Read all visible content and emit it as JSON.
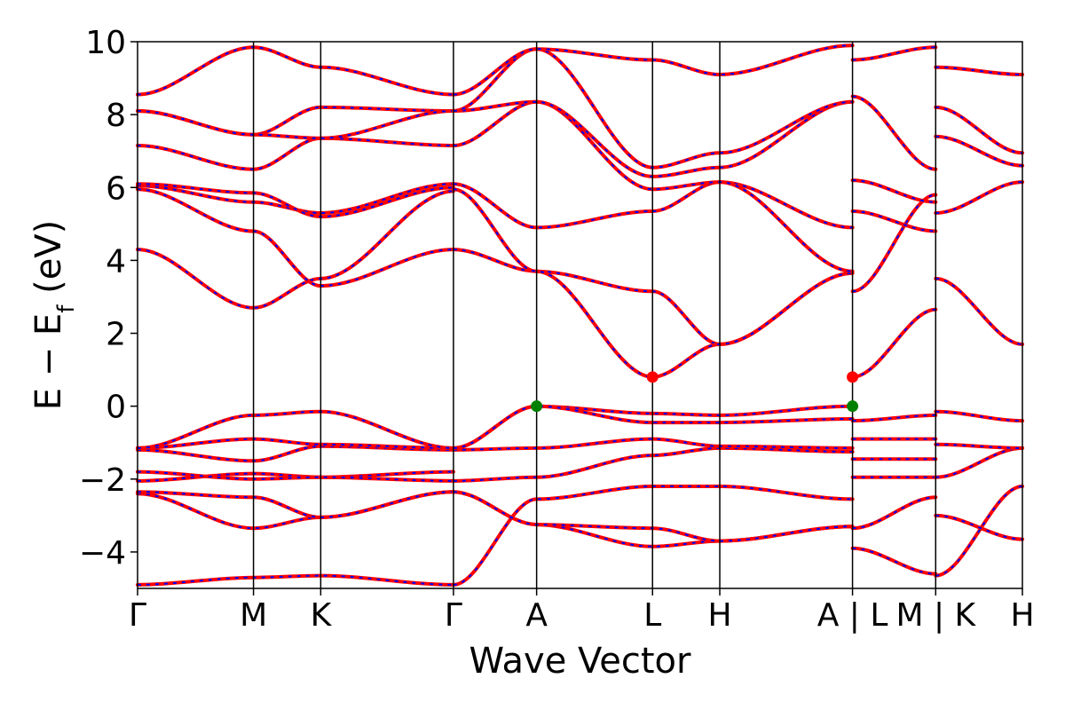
{
  "chart_data": {
    "type": "line",
    "xlabel": "Wave Vector",
    "ylabel": "E − E",
    "ylabel_sub": "f",
    "ylabel_unit": " (eV)",
    "ylim": [
      -5,
      10
    ],
    "xlim": [
      0,
      1
    ],
    "y_ticks": [
      -4,
      -2,
      0,
      2,
      4,
      6,
      8,
      10
    ],
    "y_tick_labels": [
      "−4",
      "−2",
      "0",
      "2",
      "4",
      "6",
      "8",
      "10"
    ],
    "k_path": [
      {
        "label": "Γ",
        "x": 0.0
      },
      {
        "label": "M",
        "x": 0.131
      },
      {
        "label": "K",
        "x": 0.207
      },
      {
        "label": "Γ",
        "x": 0.357
      },
      {
        "label": "A",
        "x": 0.451
      },
      {
        "label": "L",
        "x": 0.582
      },
      {
        "label": "H",
        "x": 0.658
      },
      {
        "label": "A | L",
        "x": 0.808
      },
      {
        "label": "M | K",
        "x": 0.902
      },
      {
        "label": "H",
        "x": 1.0
      }
    ],
    "grid": false,
    "legend": "none",
    "colors": {
      "band_solid": "#ff0000",
      "band_dashed": "#0000ff",
      "cbm_marker": "#ff0000",
      "vbm_marker": "#008000",
      "kline": "#000000"
    },
    "markers": [
      {
        "name": "cbm",
        "x": 0.582,
        "y": 0.8
      },
      {
        "name": "cbm",
        "x": 0.808,
        "y": 0.8
      },
      {
        "name": "vbm",
        "x": 0.451,
        "y": 0.0
      },
      {
        "name": "vbm",
        "x": 0.808,
        "y": 0.0
      }
    ],
    "series": [
      {
        "x": [
          0,
          0.131,
          0.207,
          0.357
        ],
        "y": [
          -4.9,
          -4.7,
          -4.65,
          -4.9
        ]
      },
      {
        "x": [
          0,
          0.131,
          0.207,
          0.357
        ],
        "y": [
          -2.4,
          -3.35,
          -3.05,
          -2.35
        ]
      },
      {
        "x": [
          0,
          0.131,
          0.207,
          0.357
        ],
        "y": [
          -2.35,
          -2.5,
          -3.05,
          -2.35
        ]
      },
      {
        "x": [
          0,
          0.131,
          0.207,
          0.357
        ],
        "y": [
          -2.05,
          -1.85,
          -1.95,
          -1.8
        ]
      },
      {
        "x": [
          0,
          0.131,
          0.207,
          0.357
        ],
        "y": [
          -1.8,
          -2.0,
          -1.95,
          -2.05
        ]
      },
      {
        "x": [
          0,
          0.131,
          0.207,
          0.357
        ],
        "y": [
          -1.2,
          -1.5,
          -1.1,
          -1.2
        ]
      },
      {
        "x": [
          0,
          0.131,
          0.207,
          0.357
        ],
        "y": [
          -1.15,
          -0.9,
          -1.05,
          -1.15
        ]
      },
      {
        "x": [
          0,
          0.131,
          0.207,
          0.357
        ],
        "y": [
          -1.15,
          -0.25,
          -0.15,
          -1.15
        ]
      },
      {
        "x": [
          0,
          0.131,
          0.207,
          0.357
        ],
        "y": [
          4.3,
          2.7,
          3.5,
          5.9
        ]
      },
      {
        "x": [
          0,
          0.131,
          0.207,
          0.357
        ],
        "y": [
          5.95,
          4.8,
          3.3,
          4.3
        ]
      },
      {
        "x": [
          0,
          0.131,
          0.207,
          0.357
        ],
        "y": [
          6.05,
          5.6,
          5.3,
          6.1
        ]
      },
      {
        "x": [
          0,
          0.131,
          0.207,
          0.357
        ],
        "y": [
          6.1,
          5.85,
          5.2,
          6.0
        ]
      },
      {
        "x": [
          0,
          0.131,
          0.207,
          0.357
        ],
        "y": [
          7.15,
          6.5,
          7.35,
          7.15
        ]
      },
      {
        "x": [
          0,
          0.131,
          0.207,
          0.357
        ],
        "y": [
          8.1,
          7.45,
          8.2,
          8.1
        ]
      },
      {
        "x": [
          0,
          0.131,
          0.207,
          0.357
        ],
        "y": [
          8.1,
          7.45,
          7.35,
          8.1
        ]
      },
      {
        "x": [
          0,
          0.131,
          0.207,
          0.357
        ],
        "y": [
          8.55,
          9.85,
          9.3,
          8.55
        ]
      },
      {
        "x": [
          0.357,
          0.451,
          0.582,
          0.658,
          0.808
        ],
        "y": [
          -4.9,
          -2.55,
          -2.2,
          -2.2,
          -2.55
        ]
      },
      {
        "x": [
          0.357,
          0.451,
          0.582,
          0.658,
          0.808
        ],
        "y": [
          -2.35,
          -3.25,
          -3.85,
          -3.7,
          -3.3
        ]
      },
      {
        "x": [
          0.357,
          0.451,
          0.582,
          0.658,
          0.808
        ],
        "y": [
          -2.35,
          -3.25,
          -3.35,
          -3.7,
          -3.3
        ]
      },
      {
        "x": [
          0.357,
          0.451,
          0.582,
          0.658,
          0.808
        ],
        "y": [
          -2.05,
          -1.95,
          -1.35,
          -1.15,
          -1.25
        ]
      },
      {
        "x": [
          0.357,
          0.451,
          0.582,
          0.658,
          0.808
        ],
        "y": [
          -1.2,
          -1.15,
          -0.9,
          -1.1,
          -1.15
        ]
      },
      {
        "x": [
          0.357,
          0.451,
          0.582,
          0.658,
          0.808
        ],
        "y": [
          -1.15,
          0.0,
          -0.2,
          -0.25,
          0.0
        ]
      },
      {
        "x": [
          0.357,
          0.451,
          0.582,
          0.658,
          0.808
        ],
        "y": [
          -1.15,
          0.0,
          -0.45,
          -0.45,
          -0.35
        ]
      },
      {
        "x": [
          0.357,
          0.451,
          0.582,
          0.658,
          0.808
        ],
        "y": [
          4.3,
          3.7,
          3.15,
          1.7,
          3.65
        ]
      },
      {
        "x": [
          0.357,
          0.451,
          0.582,
          0.658,
          0.808
        ],
        "y": [
          5.95,
          3.7,
          0.8,
          1.7,
          3.65
        ]
      },
      {
        "x": [
          0.357,
          0.451,
          0.582,
          0.658,
          0.808
        ],
        "y": [
          6.1,
          4.9,
          5.35,
          6.15,
          4.9
        ]
      },
      {
        "x": [
          0.357,
          0.451,
          0.582,
          0.658,
          0.808
        ],
        "y": [
          7.15,
          8.35,
          5.95,
          6.15,
          3.7
        ]
      },
      {
        "x": [
          0.357,
          0.451,
          0.582,
          0.658,
          0.808
        ],
        "y": [
          8.1,
          8.35,
          6.3,
          6.55,
          8.35
        ]
      },
      {
        "x": [
          0.357,
          0.451,
          0.582,
          0.658,
          0.808
        ],
        "y": [
          8.1,
          9.8,
          6.55,
          6.95,
          8.35
        ]
      },
      {
        "x": [
          0.357,
          0.451,
          0.582,
          0.658,
          0.808
        ],
        "y": [
          8.55,
          9.8,
          9.5,
          9.1,
          9.9
        ]
      },
      {
        "x": [
          0.808,
          0.902
        ],
        "y": [
          -3.9,
          -4.6
        ]
      },
      {
        "x": [
          0.808,
          0.902
        ],
        "y": [
          -3.35,
          -2.5
        ]
      },
      {
        "x": [
          0.808,
          0.902
        ],
        "y": [
          -1.95,
          -1.95
        ]
      },
      {
        "x": [
          0.808,
          0.902
        ],
        "y": [
          -1.45,
          -1.45
        ]
      },
      {
        "x": [
          0.808,
          0.902
        ],
        "y": [
          -0.9,
          -0.9
        ]
      },
      {
        "x": [
          0.808,
          0.902
        ],
        "y": [
          -0.4,
          -0.25
        ]
      },
      {
        "x": [
          0.808,
          0.902
        ],
        "y": [
          0.8,
          2.65
        ]
      },
      {
        "x": [
          0.808,
          0.902
        ],
        "y": [
          3.15,
          5.8
        ]
      },
      {
        "x": [
          0.808,
          0.902
        ],
        "y": [
          5.35,
          4.8
        ]
      },
      {
        "x": [
          0.808,
          0.902
        ],
        "y": [
          6.2,
          5.6
        ]
      },
      {
        "x": [
          0.808,
          0.902
        ],
        "y": [
          8.5,
          6.5
        ]
      },
      {
        "x": [
          0.808,
          0.902
        ],
        "y": [
          9.5,
          9.85
        ]
      },
      {
        "x": [
          0.902,
          1.0
        ],
        "y": [
          -4.65,
          -2.2
        ]
      },
      {
        "x": [
          0.902,
          1.0
        ],
        "y": [
          -3.0,
          -3.65
        ]
      },
      {
        "x": [
          0.902,
          1.0
        ],
        "y": [
          -1.95,
          -1.15
        ]
      },
      {
        "x": [
          0.902,
          1.0
        ],
        "y": [
          -1.05,
          -1.15
        ]
      },
      {
        "x": [
          0.902,
          1.0
        ],
        "y": [
          -0.15,
          -0.4
        ]
      },
      {
        "x": [
          0.902,
          1.0
        ],
        "y": [
          3.5,
          1.7
        ]
      },
      {
        "x": [
          0.902,
          1.0
        ],
        "y": [
          5.3,
          6.15
        ]
      },
      {
        "x": [
          0.902,
          1.0
        ],
        "y": [
          7.4,
          6.6
        ]
      },
      {
        "x": [
          0.902,
          1.0
        ],
        "y": [
          8.2,
          6.95
        ]
      },
      {
        "x": [
          0.902,
          1.0
        ],
        "y": [
          9.3,
          9.1
        ]
      }
    ]
  }
}
